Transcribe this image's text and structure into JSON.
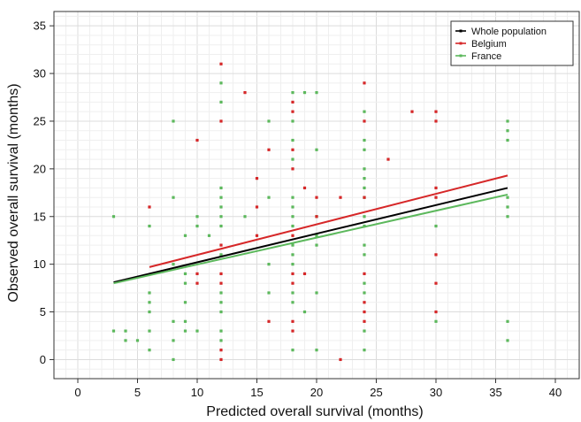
{
  "chart_data": {
    "type": "scatter",
    "title": "",
    "xlabel": "Predicted overall survival (months)",
    "ylabel": "Observed overall survival (months)",
    "xlim": [
      -2,
      42
    ],
    "ylim": [
      -2,
      36.5
    ],
    "xticks": [
      0,
      5,
      10,
      15,
      20,
      25,
      30,
      35,
      40
    ],
    "yticks": [
      0,
      5,
      10,
      15,
      20,
      25,
      30,
      35
    ],
    "grid": true,
    "legend_position": "top-right",
    "series": [
      {
        "name": "Whole population",
        "color": "#000000",
        "kind": "line",
        "x": [
          3,
          36
        ],
        "y": [
          8.1,
          18.0
        ]
      },
      {
        "name": "Belgium",
        "color": "#d62728",
        "kind": "scatter+line",
        "line": {
          "x": [
            6,
            36
          ],
          "y": [
            9.7,
            19.3
          ]
        },
        "points": [
          [
            6,
            16
          ],
          [
            10,
            23
          ],
          [
            10,
            9
          ],
          [
            10,
            8
          ],
          [
            12,
            31
          ],
          [
            12,
            25
          ],
          [
            12,
            12
          ],
          [
            12,
            9
          ],
          [
            12,
            8
          ],
          [
            12,
            1
          ],
          [
            12,
            0
          ],
          [
            14,
            28
          ],
          [
            15,
            19
          ],
          [
            15,
            16
          ],
          [
            15,
            13
          ],
          [
            16,
            22
          ],
          [
            16,
            4
          ],
          [
            18,
            27
          ],
          [
            18,
            26
          ],
          [
            18,
            22
          ],
          [
            18,
            20
          ],
          [
            18,
            13
          ],
          [
            18,
            9
          ],
          [
            18,
            8
          ],
          [
            18,
            4
          ],
          [
            18,
            3
          ],
          [
            19,
            18
          ],
          [
            19,
            9
          ],
          [
            20,
            17
          ],
          [
            20,
            15
          ],
          [
            22,
            17
          ],
          [
            22,
            0
          ],
          [
            24,
            29
          ],
          [
            24,
            25
          ],
          [
            24,
            17
          ],
          [
            24,
            9
          ],
          [
            24,
            6
          ],
          [
            24,
            5
          ],
          [
            24,
            4
          ],
          [
            26,
            21
          ],
          [
            28,
            26
          ],
          [
            30,
            26
          ],
          [
            30,
            25
          ],
          [
            30,
            18
          ],
          [
            30,
            17
          ],
          [
            30,
            11
          ],
          [
            30,
            8
          ],
          [
            30,
            5
          ]
        ]
      },
      {
        "name": "France",
        "color": "#5cb85c",
        "kind": "scatter+line",
        "line": {
          "x": [
            3,
            36
          ],
          "y": [
            8.0,
            17.3
          ]
        },
        "points": [
          [
            3,
            15
          ],
          [
            3,
            3
          ],
          [
            4,
            3
          ],
          [
            4,
            2
          ],
          [
            5,
            2
          ],
          [
            6,
            14
          ],
          [
            6,
            7
          ],
          [
            6,
            6
          ],
          [
            6,
            5
          ],
          [
            6,
            3
          ],
          [
            6,
            1
          ],
          [
            8,
            25
          ],
          [
            8,
            17
          ],
          [
            8,
            10
          ],
          [
            8,
            4
          ],
          [
            8,
            2
          ],
          [
            8,
            0
          ],
          [
            9,
            13
          ],
          [
            9,
            9
          ],
          [
            9,
            8
          ],
          [
            9,
            6
          ],
          [
            9,
            4
          ],
          [
            9,
            3
          ],
          [
            10,
            15
          ],
          [
            10,
            14
          ],
          [
            10,
            3
          ],
          [
            11,
            13
          ],
          [
            12,
            29
          ],
          [
            12,
            27
          ],
          [
            12,
            18
          ],
          [
            12,
            17
          ],
          [
            12,
            16
          ],
          [
            12,
            15
          ],
          [
            12,
            14
          ],
          [
            12,
            11
          ],
          [
            12,
            7
          ],
          [
            12,
            6
          ],
          [
            12,
            5
          ],
          [
            12,
            3
          ],
          [
            12,
            2
          ],
          [
            14,
            15
          ],
          [
            16,
            25
          ],
          [
            16,
            17
          ],
          [
            16,
            10
          ],
          [
            16,
            7
          ],
          [
            18,
            28
          ],
          [
            18,
            25
          ],
          [
            18,
            23
          ],
          [
            18,
            21
          ],
          [
            18,
            17
          ],
          [
            18,
            16
          ],
          [
            18,
            15
          ],
          [
            18,
            14
          ],
          [
            18,
            12
          ],
          [
            18,
            11
          ],
          [
            18,
            10
          ],
          [
            18,
            7
          ],
          [
            18,
            6
          ],
          [
            18,
            1
          ],
          [
            19,
            28
          ],
          [
            19,
            5
          ],
          [
            20,
            28
          ],
          [
            20,
            22
          ],
          [
            20,
            15
          ],
          [
            20,
            13
          ],
          [
            20,
            12
          ],
          [
            20,
            7
          ],
          [
            20,
            1
          ],
          [
            24,
            26
          ],
          [
            24,
            23
          ],
          [
            24,
            22
          ],
          [
            24,
            20
          ],
          [
            24,
            19
          ],
          [
            24,
            18
          ],
          [
            24,
            17
          ],
          [
            24,
            15
          ],
          [
            24,
            14
          ],
          [
            24,
            12
          ],
          [
            24,
            11
          ],
          [
            24,
            8
          ],
          [
            24,
            7
          ],
          [
            24,
            3
          ],
          [
            24,
            1
          ],
          [
            30,
            14
          ],
          [
            30,
            4
          ],
          [
            36,
            25
          ],
          [
            36,
            24
          ],
          [
            36,
            23
          ],
          [
            36,
            17
          ],
          [
            36,
            16
          ],
          [
            36,
            15
          ],
          [
            36,
            4
          ],
          [
            36,
            2
          ]
        ]
      }
    ]
  }
}
